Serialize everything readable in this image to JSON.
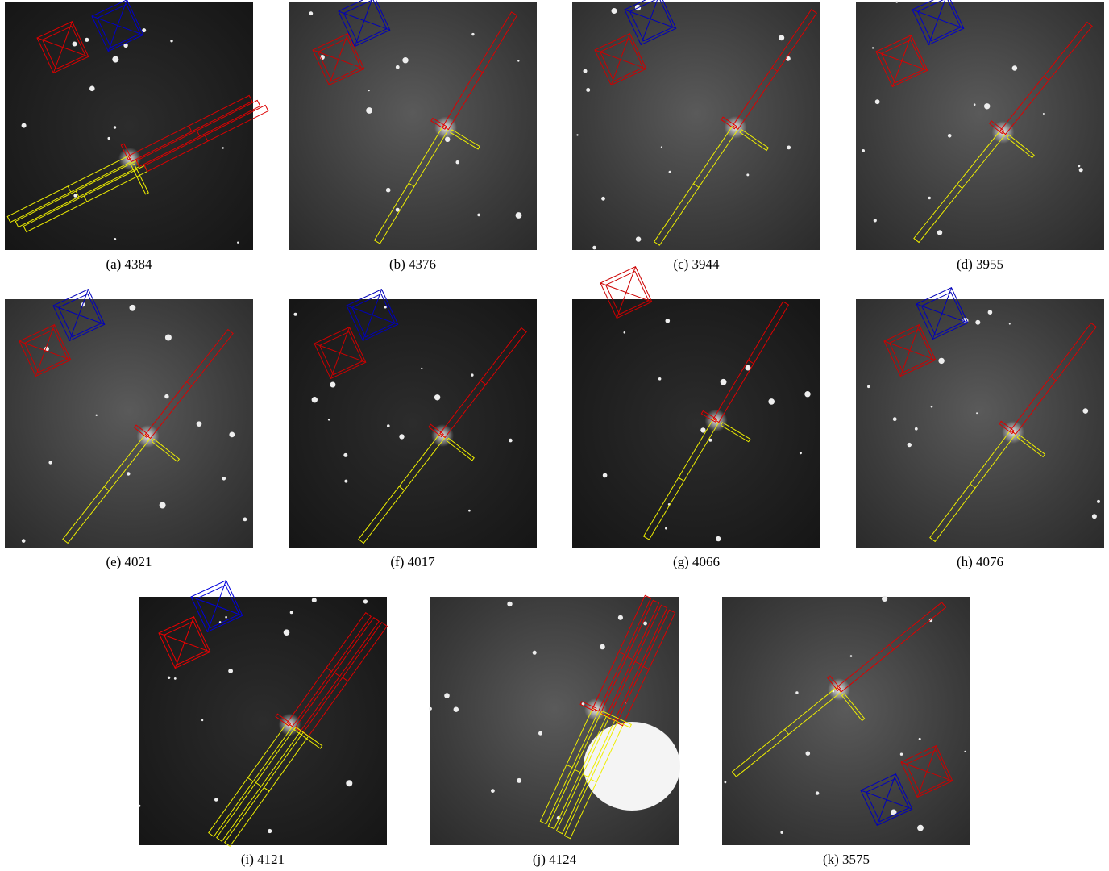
{
  "figure": {
    "panels": [
      {
        "caption": "(a) 4384"
      },
      {
        "caption": "(b) 4376"
      },
      {
        "caption": "(c) 3944"
      },
      {
        "caption": "(d) 3955"
      },
      {
        "caption": "(e) 4021"
      },
      {
        "caption": "(f) 4017"
      },
      {
        "caption": "(g) 4066"
      },
      {
        "caption": "(h) 4076"
      },
      {
        "caption": "(i) 4121"
      },
      {
        "caption": "(j) 4124"
      },
      {
        "caption": "(k) 3575"
      }
    ]
  }
}
